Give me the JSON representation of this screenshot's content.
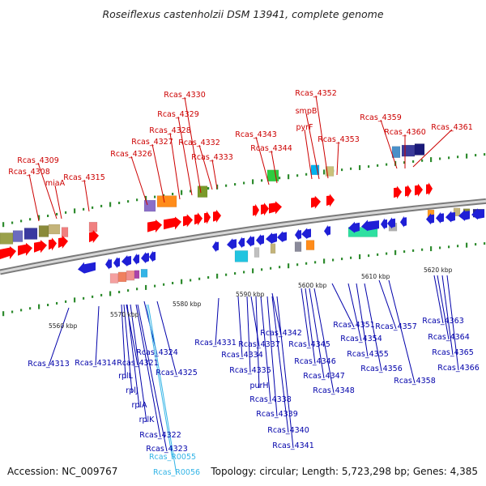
{
  "title": "Roseiflexus castenholzii DSM 13941, complete genome",
  "footer": {
    "accession_label": "Accession:",
    "accession": "NC_009767",
    "topology_text": "Topology: circular; Length: 5,723,298 bp; Genes: 4,385"
  },
  "colors": {
    "forward_label": "#cc0000",
    "reverse_label": "#0000aa",
    "rna_label": "#33b4e6",
    "forward_arrow": "#ff0000",
    "reverse_arrow": "#1f1fd6"
  },
  "scale_ticks": [
    "5560 kbp",
    "5570 kbp",
    "5580 kbp",
    "5590 kbp",
    "5600 kbp",
    "5610 kbp",
    "5620 kbp"
  ],
  "forward_labels": [
    "Rcas_4308",
    "Rcas_4309",
    "miaA",
    "Rcas_4315",
    "Rcas_4326",
    "Rcas_4327",
    "Rcas_4328",
    "Rcas_4329",
    "Rcas_4330",
    "Rcas_4332",
    "Rcas_4333",
    "Rcas_4343",
    "Rcas_4344",
    "Rcas_4352",
    "smpB",
    "pyrF",
    "Rcas_4353",
    "Rcas_4359",
    "Rcas_4360",
    "Rcas_4361"
  ],
  "reverse_labels": [
    "Rcas_4313",
    "Rcas_4314",
    "Rcas_4321",
    "rplL",
    "rplJ",
    "rplA",
    "rplK",
    "Rcas_4322",
    "Rcas_4323",
    "Rcas_R0055",
    "Rcas_R0056",
    "Rcas_4324",
    "Rcas_4325",
    "Rcas_4331",
    "Rcas_4334",
    "Rcas_4335",
    "purH",
    "Rcas_4337",
    "Rcas_4338",
    "Rcas_4339",
    "Rcas_4340",
    "Rcas_4341",
    "Rcas_4342",
    "Rcas_4345",
    "Rcas_4346",
    "Rcas_4347",
    "Rcas_4348",
    "Rcas_4351",
    "Rcas_4354",
    "Rcas_4355",
    "Rcas_4356",
    "Rcas_4357",
    "Rcas_4358",
    "Rcas_4363",
    "Rcas_4364",
    "Rcas_4365",
    "Rcas_4366"
  ],
  "rna_labels": [
    "Rcas_R0055",
    "Rcas_R0056"
  ]
}
